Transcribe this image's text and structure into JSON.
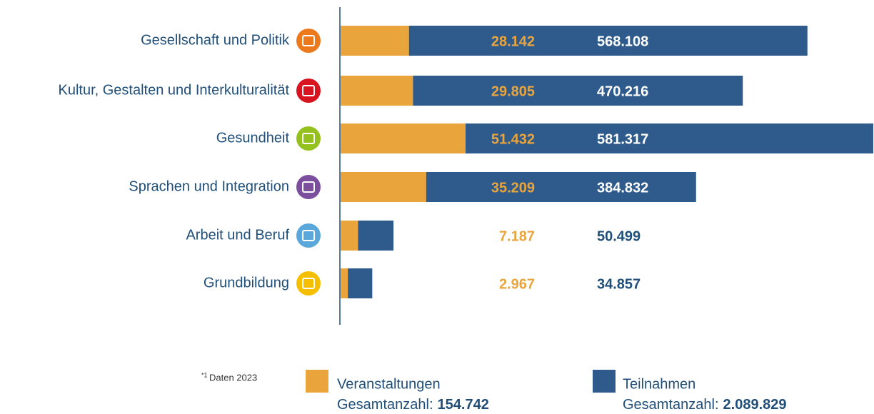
{
  "chart_data": {
    "type": "stacked_bar_horizontal",
    "categories": [
      "Gesellschaft und Politik",
      "Kultur, Gestalten und Interkulturalität",
      "Gesundheit",
      "Sprachen und Integration",
      "Arbeit und Beruf",
      "Grundbildung"
    ],
    "category_colors": [
      "#ec7a1c",
      "#d7141f",
      "#95c11f",
      "#7b4f9d",
      "#5aa7dc",
      "#f5bf00"
    ],
    "series": [
      {
        "name": "Veranstaltungen",
        "color": "#e9a43c",
        "values": [
          28142,
          29805,
          51432,
          35209,
          7187,
          2967
        ],
        "value_labels": [
          "28.142",
          "29.805",
          "51.432",
          "35.209",
          "7.187",
          "2.967"
        ],
        "total": 154742,
        "total_label": "154.742"
      },
      {
        "name": "Teilnahmen",
        "color": "#2e5b8b",
        "values": [
          568108,
          470216,
          581317,
          384832,
          50499,
          34857
        ],
        "value_labels": [
          "568.108",
          "470.216",
          "581.317",
          "384.832",
          "50.499",
          "34.857"
        ],
        "total": 2089829,
        "total_label": "2.089.829"
      }
    ],
    "total_caption": "Gesamtanzahl:",
    "footnote_mark": "*1",
    "footnote": "Daten 2023"
  }
}
